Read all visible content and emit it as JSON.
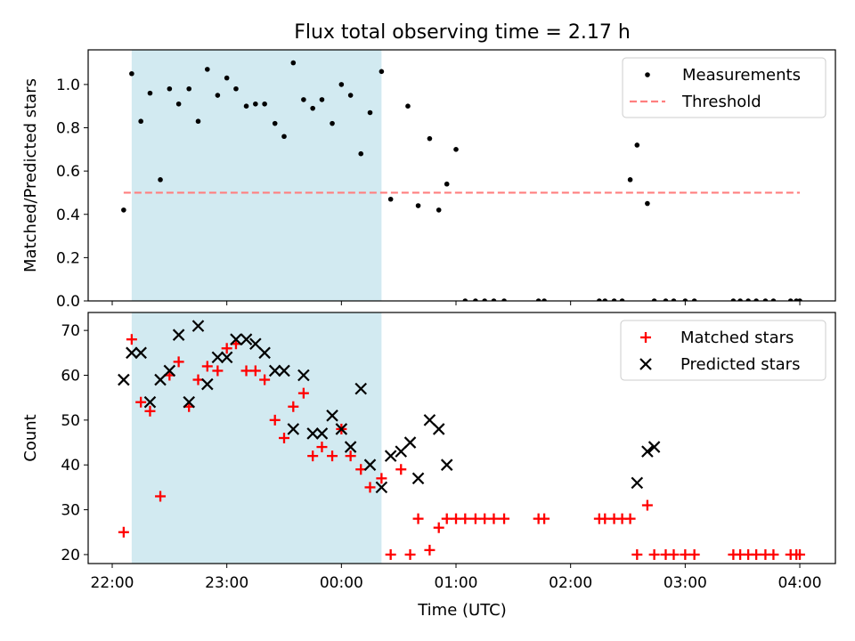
{
  "chart_data": {
    "title": "Flux total observing time = 2.17 h",
    "xlabel": "Time (UTC)",
    "x_ticks": [
      "22:00",
      "23:00",
      "00:00",
      "01:00",
      "02:00",
      "03:00",
      "04:00"
    ],
    "x_range_hours": [
      21.8,
      28.3
    ],
    "shaded_interval_hours": [
      22.17,
      24.35
    ],
    "shade_color": "#add8e6",
    "panels": [
      {
        "type": "scatter",
        "ylabel": "Matched/Predicted stars",
        "ylim": [
          0,
          1.16
        ],
        "yticks": [
          "0.0",
          "0.2",
          "0.4",
          "0.6",
          "0.8",
          "1.0"
        ],
        "threshold": 0.5,
        "threshold_color": "#ff7f7f",
        "legend": [
          "Measurements",
          "Threshold"
        ],
        "series": [
          {
            "name": "Measurements",
            "color": "#000000",
            "x": [
              22.1,
              22.17,
              22.25,
              22.33,
              22.42,
              22.5,
              22.58,
              22.67,
              22.75,
              22.83,
              22.92,
              23.0,
              23.08,
              23.17,
              23.25,
              23.33,
              23.42,
              23.5,
              23.58,
              23.67,
              23.75,
              23.83,
              23.92,
              24.0,
              24.08,
              24.17,
              24.25,
              24.35,
              24.43,
              24.58,
              24.67,
              24.77,
              24.85,
              24.92,
              25.0,
              25.08,
              25.17,
              25.25,
              25.33,
              25.42,
              25.72,
              25.77,
              26.25,
              26.3,
              26.38,
              26.45,
              26.52,
              26.58,
              26.67,
              26.73,
              26.83,
              26.9,
              27.0,
              27.08,
              27.42,
              27.48,
              27.55,
              27.62,
              27.7,
              27.77,
              27.92,
              27.97,
              28.0
            ],
            "y": [
              0.42,
              1.05,
              0.83,
              0.96,
              0.56,
              0.98,
              0.91,
              0.98,
              0.83,
              1.07,
              0.95,
              1.03,
              0.98,
              0.9,
              0.91,
              0.91,
              0.82,
              0.76,
              1.1,
              0.93,
              0.89,
              0.93,
              0.82,
              1.0,
              0.95,
              0.68,
              0.87,
              1.06,
              0.47,
              0.9,
              0.44,
              0.75,
              0.42,
              0.54,
              0.7,
              0.0,
              0.0,
              0.0,
              0.0,
              0.0,
              0.0,
              0.0,
              0.0,
              0.0,
              0.0,
              0.0,
              0.56,
              0.72,
              0.45,
              0.0,
              0.0,
              0.0,
              0.0,
              0.0,
              0.0,
              0.0,
              0.0,
              0.0,
              0.0,
              0.0,
              0.0,
              0.0,
              0.0
            ]
          }
        ]
      },
      {
        "type": "scatter",
        "ylabel": "Count",
        "ylim": [
          18,
          74
        ],
        "yticks": [
          "20",
          "30",
          "40",
          "50",
          "60",
          "70"
        ],
        "legend": [
          "Matched stars",
          "Predicted stars"
        ],
        "series": [
          {
            "name": "Matched stars",
            "color": "#ff0000",
            "marker": "plus",
            "x": [
              22.1,
              22.17,
              22.25,
              22.33,
              22.42,
              22.5,
              22.58,
              22.67,
              22.75,
              22.83,
              22.92,
              23.0,
              23.08,
              23.17,
              23.25,
              23.33,
              23.42,
              23.5,
              23.58,
              23.67,
              23.75,
              23.83,
              23.92,
              24.0,
              24.08,
              24.17,
              24.25,
              24.35,
              24.43,
              24.52,
              24.6,
              24.67,
              24.77,
              24.85,
              24.92,
              25.0,
              25.08,
              25.17,
              25.25,
              25.33,
              25.42,
              25.72,
              25.77,
              26.25,
              26.3,
              26.38,
              26.45,
              26.52,
              26.58,
              26.67,
              26.73,
              26.83,
              26.9,
              27.0,
              27.08,
              27.42,
              27.48,
              27.55,
              27.62,
              27.7,
              27.77,
              27.92,
              27.97,
              28.0
            ],
            "y": [
              25,
              68,
              54,
              52,
              33,
              60,
              63,
              53,
              59,
              62,
              61,
              66,
              67,
              61,
              61,
              59,
              50,
              46,
              53,
              56,
              42,
              44,
              42,
              48,
              42,
              39,
              35,
              37,
              20,
              39,
              20,
              28,
              21,
              26,
              28,
              28,
              28,
              28,
              28,
              28,
              28,
              28,
              28,
              28,
              28,
              28,
              28,
              28,
              20,
              31,
              20,
              20,
              20,
              20,
              20,
              20,
              20,
              20,
              20,
              20,
              20,
              20,
              20,
              20
            ]
          },
          {
            "name": "Predicted stars",
            "color": "#000000",
            "marker": "x",
            "x": [
              22.1,
              22.17,
              22.25,
              22.33,
              22.42,
              22.5,
              22.58,
              22.67,
              22.75,
              22.83,
              22.92,
              23.0,
              23.08,
              23.17,
              23.25,
              23.33,
              23.42,
              23.5,
              23.58,
              23.67,
              23.75,
              23.83,
              23.92,
              24.0,
              24.08,
              24.17,
              24.25,
              24.35,
              24.43,
              24.52,
              24.6,
              24.67,
              24.77,
              24.85,
              24.92,
              26.58,
              26.67,
              26.73
            ],
            "y": [
              59,
              65,
              65,
              54,
              59,
              61,
              69,
              54,
              71,
              58,
              64,
              64,
              68,
              68,
              67,
              65,
              61,
              61,
              48,
              60,
              47,
              47,
              51,
              48,
              44,
              57,
              40,
              35,
              42,
              43,
              45,
              37,
              50,
              48,
              40,
              36,
              43,
              44
            ]
          }
        ]
      }
    ]
  }
}
